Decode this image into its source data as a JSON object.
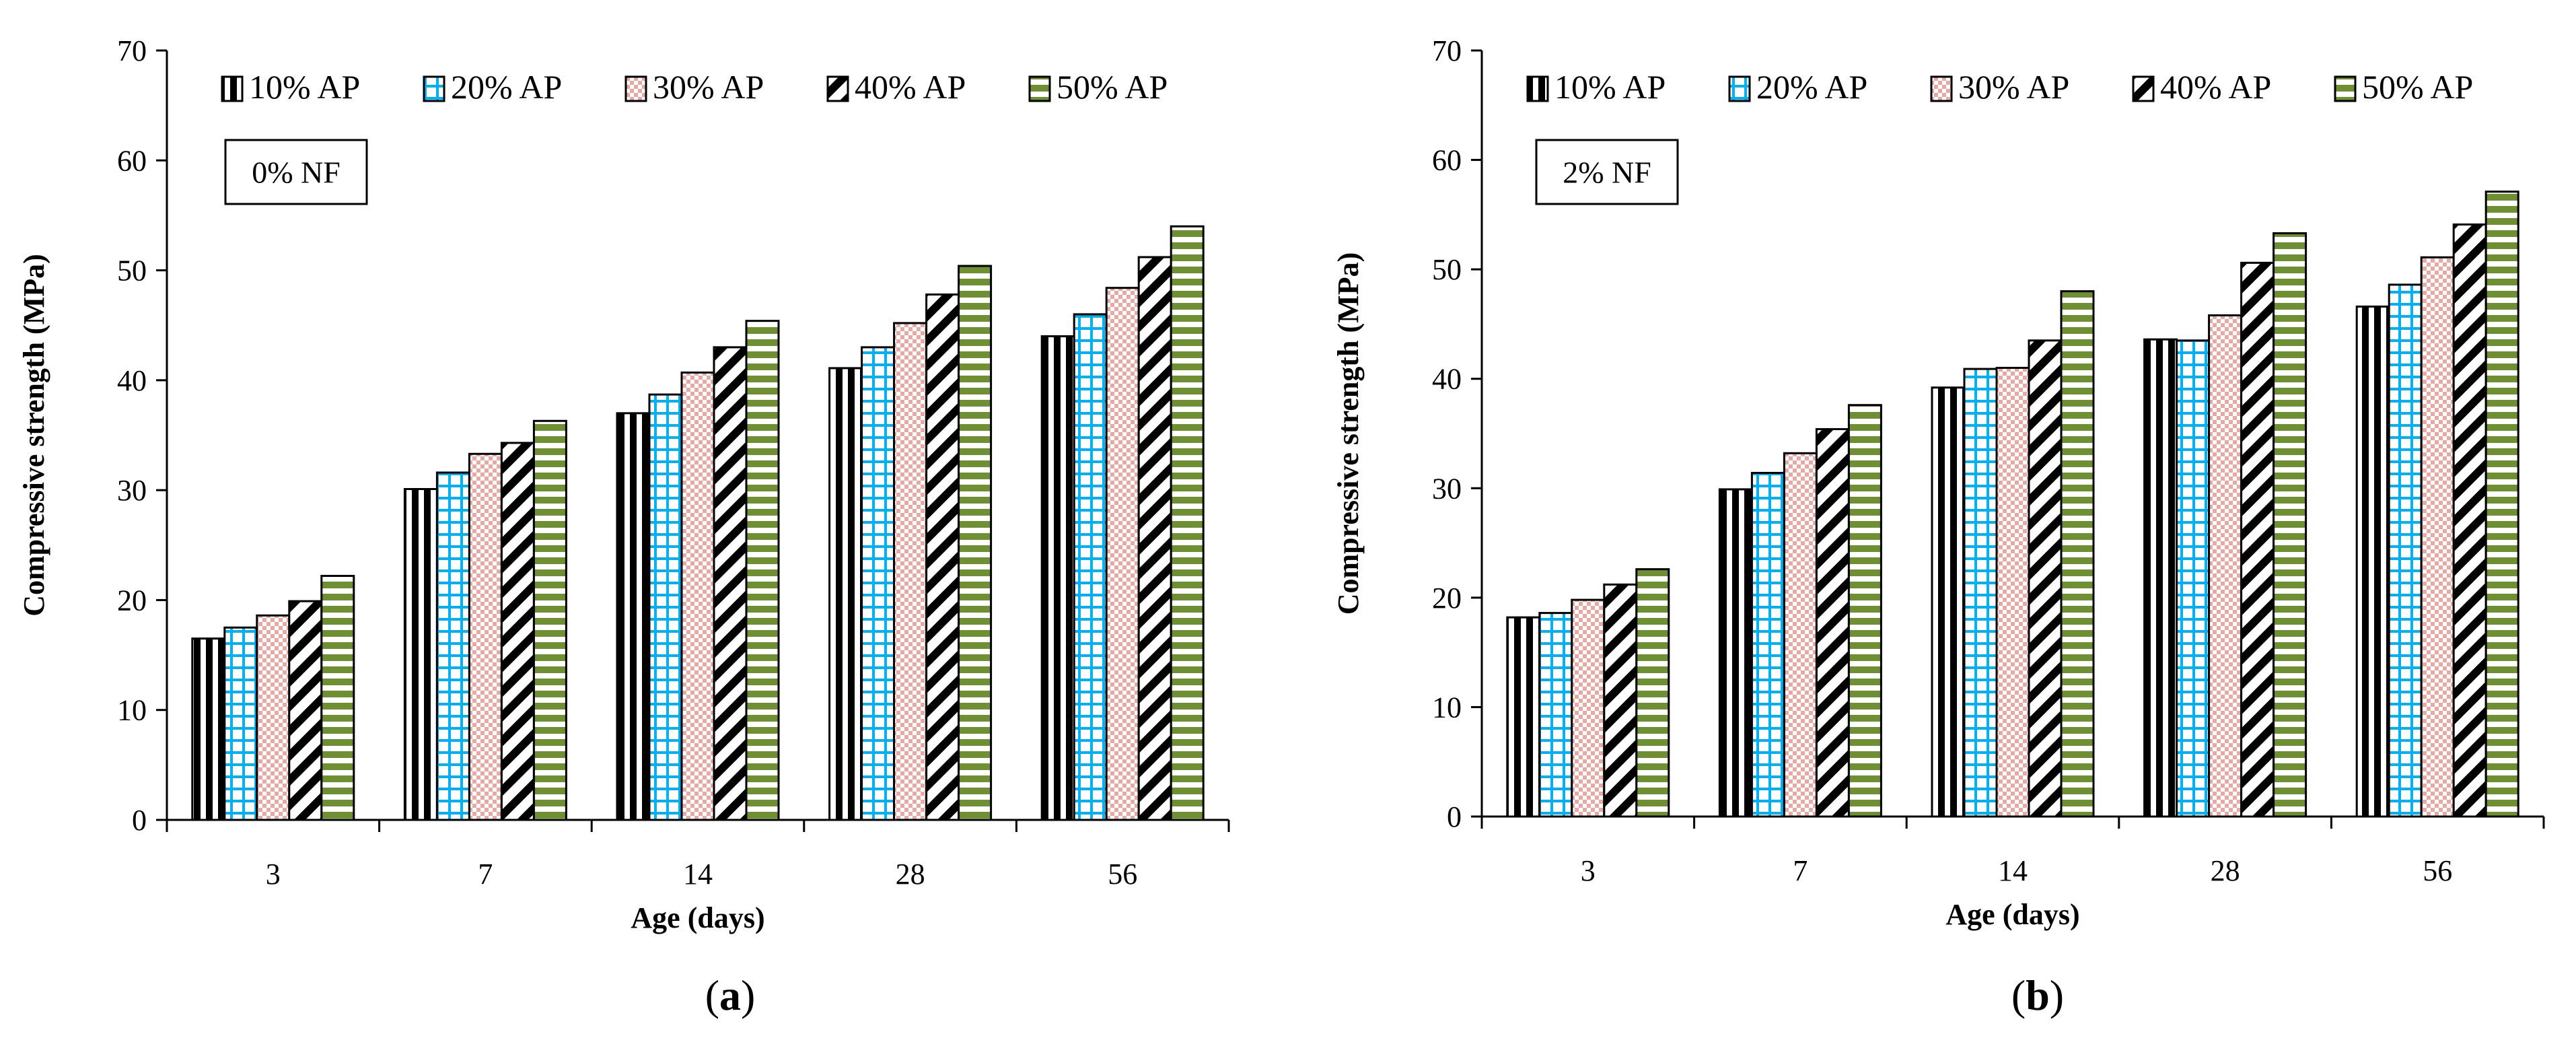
{
  "colors": {
    "s10": "#000000",
    "s20": "#00b0f0",
    "s30": "#e6a9a3",
    "s40": "#000000",
    "s50": "#6e9033"
  },
  "legend_labels": [
    "10% AP",
    "20% AP",
    "30% AP",
    "40% AP",
    "50% AP"
  ],
  "chart_data": [
    {
      "type": "bar",
      "panel": "a",
      "caption_open": "(",
      "caption_letter": "a",
      "caption_close": ")",
      "annotation": "0% NF",
      "xlabel": "Age (days)",
      "ylabel": "Compressive strength (MPa)",
      "ylim": [
        0,
        70
      ],
      "yticks": [
        0,
        10,
        20,
        30,
        40,
        50,
        60,
        70
      ],
      "categories": [
        "3",
        "7",
        "14",
        "28",
        "56"
      ],
      "series": [
        {
          "name": "10% AP",
          "values": [
            16.5,
            30.1,
            37.0,
            41.1,
            44.0
          ]
        },
        {
          "name": "20% AP",
          "values": [
            17.5,
            31.6,
            38.7,
            43.0,
            46.0
          ]
        },
        {
          "name": "30% AP",
          "values": [
            18.6,
            33.3,
            40.7,
            45.2,
            48.4
          ]
        },
        {
          "name": "40% AP",
          "values": [
            19.9,
            34.3,
            43.0,
            47.8,
            51.2
          ]
        },
        {
          "name": "50% AP",
          "values": [
            22.2,
            36.3,
            45.4,
            50.4,
            54.0
          ]
        }
      ]
    },
    {
      "type": "bar",
      "panel": "b",
      "caption_open": "(",
      "caption_letter": "b",
      "caption_close": ")",
      "annotation": "2% NF",
      "xlabel": "Age (days)",
      "ylabel": "Compressive strength (MPa)",
      "ylim": [
        0,
        70
      ],
      "yticks": [
        0,
        10,
        20,
        30,
        40,
        50,
        60,
        70
      ],
      "categories": [
        "3",
        "7",
        "14",
        "28",
        "56"
      ],
      "series": [
        {
          "name": "10% AP",
          "values": [
            18.2,
            29.9,
            39.2,
            43.6,
            46.6
          ]
        },
        {
          "name": "20% AP",
          "values": [
            18.6,
            31.4,
            40.9,
            43.5,
            48.6
          ]
        },
        {
          "name": "30% AP",
          "values": [
            19.8,
            33.2,
            41.0,
            45.8,
            51.1
          ]
        },
        {
          "name": "40% AP",
          "values": [
            21.2,
            35.4,
            43.5,
            50.6,
            54.1
          ]
        },
        {
          "name": "50% AP",
          "values": [
            22.6,
            37.6,
            48.0,
            53.3,
            57.1
          ]
        }
      ]
    }
  ]
}
